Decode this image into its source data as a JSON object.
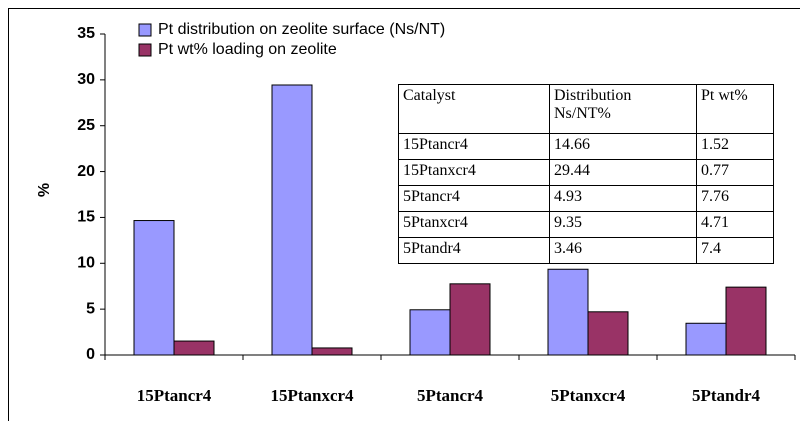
{
  "chart_data": {
    "type": "bar",
    "y_label": "%",
    "categories": [
      "15Ptancr4",
      "15Ptanxcr4",
      "5Ptancr4",
      "5Ptanxcr4",
      "5Ptandr4"
    ],
    "series": [
      {
        "name": "Pt distribution on zeolite surface (Ns/NT)",
        "color": "#9999ff",
        "values": [
          14.66,
          29.44,
          4.93,
          9.35,
          3.46
        ]
      },
      {
        "name": "Pt wt% loading on zeolite",
        "color": "#993366",
        "values": [
          1.52,
          0.77,
          7.76,
          4.71,
          7.4
        ]
      }
    ],
    "ylim": [
      0,
      35
    ],
    "yticks": [
      0,
      5,
      10,
      15,
      20,
      25,
      30,
      35
    ],
    "grid": false,
    "table": {
      "header": [
        "Catalyst",
        "Distribution Ns/NT%",
        "Pt wt%"
      ],
      "rows": [
        [
          "15Ptancr4",
          "14.66",
          "1.52"
        ],
        [
          "15Ptanxcr4",
          "29.44",
          "0.77"
        ],
        [
          "5Ptancr4",
          "4.93",
          "7.76"
        ],
        [
          "5Ptanxcr4",
          "9.35",
          "4.71"
        ],
        [
          "5Ptandr4",
          "3.46",
          "7.4"
        ]
      ]
    }
  }
}
